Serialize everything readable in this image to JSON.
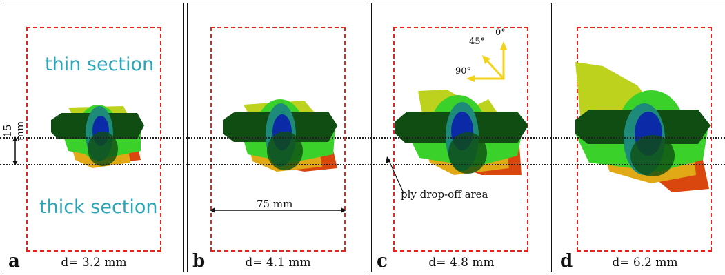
{
  "panels": [
    {
      "letter": "a",
      "d_label": "d= 3.2 mm"
    },
    {
      "letter": "b",
      "d_label": "d= 4.1 mm"
    },
    {
      "letter": "c",
      "d_label": "d= 4.8 mm"
    },
    {
      "letter": "d",
      "d_label": "d= 6.2 mm"
    }
  ],
  "annotations": {
    "thin_section": "thin section",
    "thick_section": "thick section",
    "thickness_dim": "15 mm",
    "width_dim": "75 mm",
    "dropoff": "ply drop-off area"
  },
  "orientation": {
    "a0": "0°",
    "a45": "45°",
    "a90": "90°"
  },
  "colors": {
    "frame": "#111111",
    "dashed_rect": "#e8231f",
    "teal_text": "#2aa6b8",
    "arrow_yellow": "#f3d21a",
    "dark_green": "#0f4d12",
    "bright_green": "#3ad12a",
    "lime": "#bcd21c",
    "orange_red": "#d9470e",
    "blue": "#0b2aa8",
    "teal_layer": "#1d8a7a"
  }
}
